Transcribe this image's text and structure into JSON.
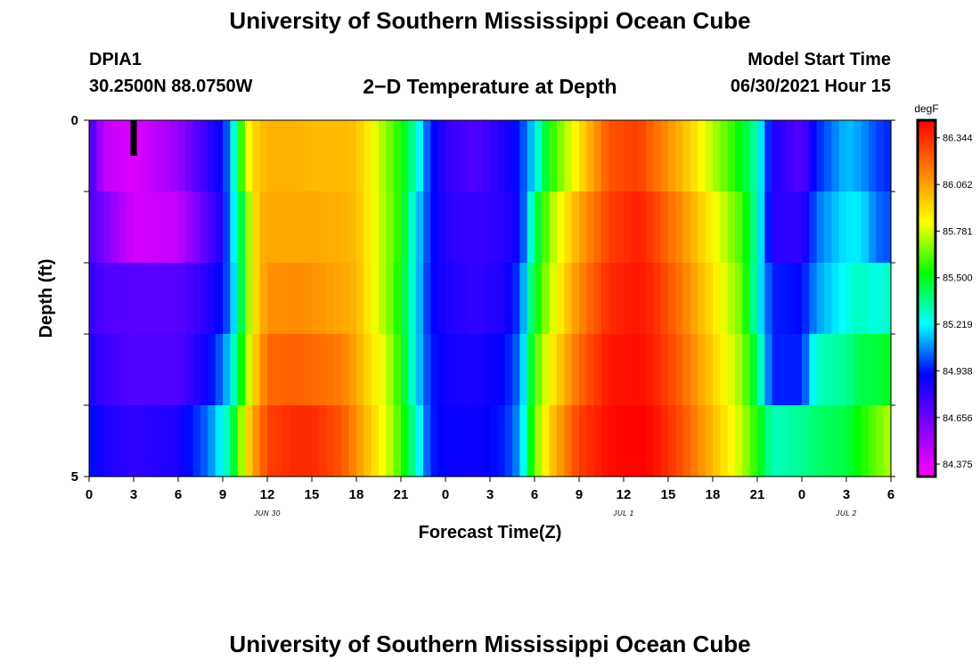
{
  "page": {
    "title_top": "University of Southern Mississippi Ocean Cube",
    "title_bottom": "University of Southern Mississippi Ocean Cube",
    "station_id": "DPIA1",
    "station_coords": "30.2500N  88.0750W",
    "plot_title": "2−D Temperature at Depth",
    "model_start_label": "Model Start Time",
    "model_start_value": "06/30/2021 Hour 15"
  },
  "colors": {
    "palette": [
      "#ff00ff",
      "#8000ff",
      "#0000ff",
      "#00ffff",
      "#00ff00",
      "#ffff00",
      "#ff8000",
      "#ff0000"
    ],
    "current_time_marker": "#000000"
  },
  "chart_data": {
    "type": "heatmap",
    "title": "2−D Temperature at Depth",
    "xlabel": "Forecast Time(Z)",
    "ylabel": "Depth (ft)",
    "colorbar_unit": "degF",
    "colorbar_ticks": [
      86.344,
      86.062,
      85.781,
      85.5,
      85.219,
      84.938,
      84.656,
      84.375
    ],
    "colorbar_tick_labels": [
      "86.344",
      "86.062",
      "85.781",
      "85.500",
      "85.219",
      "84.938",
      "84.656",
      "84.375"
    ],
    "value_range": [
      84.3,
      86.45
    ],
    "x_range_hours": [
      0,
      54
    ],
    "x_tick_hours": [
      0,
      3,
      6,
      9,
      12,
      15,
      18,
      21,
      24,
      27,
      30,
      33,
      36,
      39,
      42,
      45,
      48,
      51,
      54
    ],
    "x_tick_labels": [
      "0",
      "3",
      "6",
      "9",
      "12",
      "15",
      "18",
      "21",
      "0",
      "3",
      "6",
      "9",
      "12",
      "15",
      "18",
      "21",
      "0",
      "3",
      "6"
    ],
    "date_labels": [
      {
        "hour": 12,
        "label": "JUN 30"
      },
      {
        "hour": 36,
        "label": "JUL 1"
      },
      {
        "hour": 51,
        "label": "JUL 2"
      }
    ],
    "y_range_ft": [
      0,
      5
    ],
    "y_tick_labels": [
      {
        "depth": 0,
        "label": "0"
      },
      {
        "depth": 5,
        "label": "5"
      }
    ],
    "y_minor_ticks": [
      1,
      2,
      3,
      4
    ],
    "depth_layers": [
      "0-1 ft",
      "1-2 ft",
      "2-3 ft",
      "3-4 ft",
      "4-5 ft"
    ],
    "current_time_marker_hour": 3,
    "keyframes": [
      {
        "hour": 0,
        "values": [
          84.8,
          84.75,
          84.8,
          84.85,
          84.95
        ]
      },
      {
        "hour": 1,
        "values": [
          84.45,
          84.62,
          84.72,
          84.78,
          84.85
        ]
      },
      {
        "hour": 3,
        "values": [
          84.38,
          84.4,
          84.7,
          84.72,
          84.8
        ]
      },
      {
        "hour": 6,
        "values": [
          84.55,
          84.45,
          84.7,
          84.72,
          84.85
        ]
      },
      {
        "hour": 8,
        "values": [
          84.8,
          84.72,
          84.82,
          84.9,
          85.05
        ]
      },
      {
        "hour": 9,
        "values": [
          84.92,
          84.85,
          84.95,
          85.05,
          85.25
        ]
      },
      {
        "hour": 9.5,
        "values": [
          85.1,
          85.12,
          85.05,
          85.2,
          85.35
        ]
      },
      {
        "hour": 10,
        "values": [
          85.45,
          85.3,
          85.3,
          85.4,
          85.6
        ]
      },
      {
        "hour": 10.5,
        "values": [
          85.75,
          85.6,
          85.6,
          85.65,
          85.85
        ]
      },
      {
        "hour": 11,
        "values": [
          85.92,
          85.85,
          85.85,
          85.9,
          86.05
        ]
      },
      {
        "hour": 11.5,
        "values": [
          85.98,
          86.02,
          86.0,
          86.05,
          86.15
        ]
      },
      {
        "hour": 12,
        "values": [
          86.02,
          86.05,
          86.1,
          86.2,
          86.3
        ]
      },
      {
        "hour": 14,
        "values": [
          86.02,
          86.05,
          86.12,
          86.22,
          86.35
        ]
      },
      {
        "hour": 15,
        "values": [
          86.0,
          86.05,
          86.1,
          86.2,
          86.35
        ]
      },
      {
        "hour": 17,
        "values": [
          86.0,
          86.03,
          86.05,
          86.15,
          86.25
        ]
      },
      {
        "hour": 18,
        "values": [
          85.98,
          86.0,
          86.02,
          86.05,
          86.1
        ]
      },
      {
        "hour": 19,
        "values": [
          85.85,
          85.85,
          85.85,
          85.9,
          85.95
        ]
      },
      {
        "hour": 20,
        "values": [
          85.7,
          85.72,
          85.72,
          85.78,
          85.8
        ]
      },
      {
        "hour": 21,
        "values": [
          85.55,
          85.55,
          85.52,
          85.55,
          85.6
        ]
      },
      {
        "hour": 22,
        "values": [
          85.3,
          85.2,
          85.2,
          85.2,
          85.3
        ]
      },
      {
        "hour": 23,
        "values": [
          84.95,
          84.95,
          84.92,
          84.95,
          84.95
        ]
      },
      {
        "hour": 24,
        "values": [
          84.8,
          84.82,
          84.85,
          84.88,
          84.9
        ]
      },
      {
        "hour": 26,
        "values": [
          84.72,
          84.78,
          84.8,
          84.85,
          84.88
        ]
      },
      {
        "hour": 28,
        "values": [
          84.85,
          84.82,
          84.85,
          84.92,
          84.95
        ]
      },
      {
        "hour": 29,
        "values": [
          84.95,
          84.9,
          85.0,
          85.05,
          85.1
        ]
      },
      {
        "hour": 30,
        "values": [
          85.2,
          85.4,
          85.5,
          85.6,
          85.65
        ]
      },
      {
        "hour": 31,
        "values": [
          85.55,
          85.7,
          85.75,
          85.85,
          85.95
        ]
      },
      {
        "hour": 33,
        "values": [
          85.9,
          86.05,
          86.12,
          86.2,
          86.3
        ]
      },
      {
        "hour": 35,
        "values": [
          86.25,
          86.3,
          86.35,
          86.4,
          86.42
        ]
      },
      {
        "hour": 37,
        "values": [
          86.3,
          86.38,
          86.4,
          86.42,
          86.45
        ]
      },
      {
        "hour": 38,
        "values": [
          86.2,
          86.3,
          86.35,
          86.38,
          86.42
        ]
      },
      {
        "hour": 40,
        "values": [
          86.0,
          86.1,
          86.15,
          86.2,
          86.25
        ]
      },
      {
        "hour": 42,
        "values": [
          85.75,
          85.85,
          85.9,
          85.95,
          86.0
        ]
      },
      {
        "hour": 44,
        "values": [
          85.5,
          85.6,
          85.65,
          85.7,
          85.75
        ]
      },
      {
        "hour": 45,
        "values": [
          85.3,
          85.3,
          85.25,
          85.4,
          85.55
        ]
      },
      {
        "hour": 46,
        "values": [
          84.85,
          84.82,
          84.95,
          84.95,
          85.3
        ]
      },
      {
        "hour": 48,
        "values": [
          84.7,
          84.8,
          84.92,
          84.95,
          85.35
        ]
      },
      {
        "hour": 49,
        "values": [
          84.95,
          85.05,
          85.1,
          85.3,
          85.4
        ]
      },
      {
        "hour": 51,
        "values": [
          85.15,
          85.2,
          85.25,
          85.35,
          85.45
        ]
      },
      {
        "hour": 52,
        "values": [
          85.1,
          85.2,
          85.3,
          85.45,
          85.55
        ]
      },
      {
        "hour": 53,
        "values": [
          85.0,
          85.05,
          85.25,
          85.45,
          85.65
        ]
      },
      {
        "hour": 54,
        "values": [
          84.95,
          85.0,
          85.3,
          85.5,
          85.75
        ]
      }
    ]
  }
}
